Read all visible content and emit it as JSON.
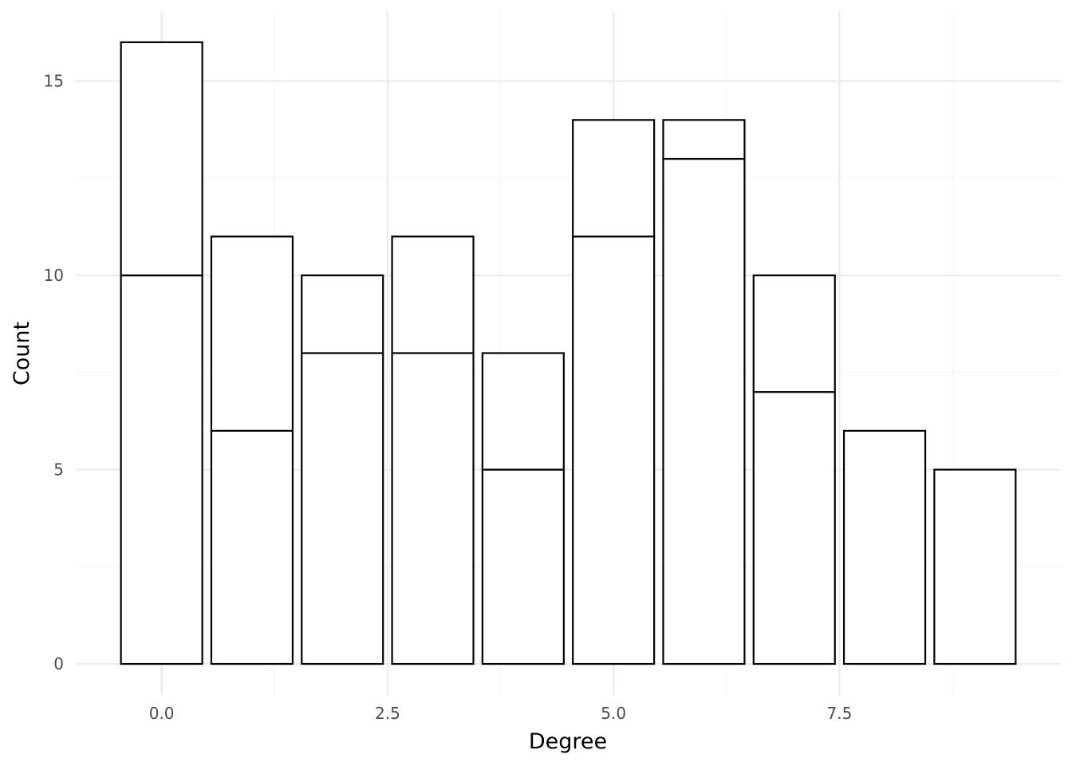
{
  "chart_data": {
    "type": "bar",
    "stacked": true,
    "x": [
      0,
      1,
      2,
      3,
      4,
      5,
      6,
      7,
      8,
      9
    ],
    "series": [
      {
        "values": [
          10,
          6,
          8,
          8,
          5,
          11,
          13,
          7,
          6,
          5
        ]
      },
      {
        "values": [
          6,
          5,
          2,
          3,
          3,
          3,
          1,
          3,
          0,
          0
        ]
      }
    ],
    "totals": [
      16,
      11,
      10,
      11,
      8,
      14,
      14,
      10,
      6,
      5
    ],
    "xlabel": "Degree",
    "ylabel": "Count",
    "xlim": [
      -0.95,
      9.95
    ],
    "ylim": [
      -0.8,
      16.8
    ],
    "x_ticks": [
      0.0,
      2.5,
      5.0,
      7.5
    ],
    "x_tick_labels": [
      "0.0",
      "2.5",
      "5.0",
      "7.5"
    ],
    "y_ticks": [
      0,
      5,
      10,
      15
    ],
    "y_tick_labels": [
      "0",
      "5",
      "10",
      "15"
    ],
    "bar_width": 0.9,
    "grid": true,
    "legend": "none",
    "colors": {
      "fill": "#ffffff",
      "outline": "#000000",
      "grid": "#ebebeb",
      "tick_text": "#4d4d4d"
    }
  }
}
